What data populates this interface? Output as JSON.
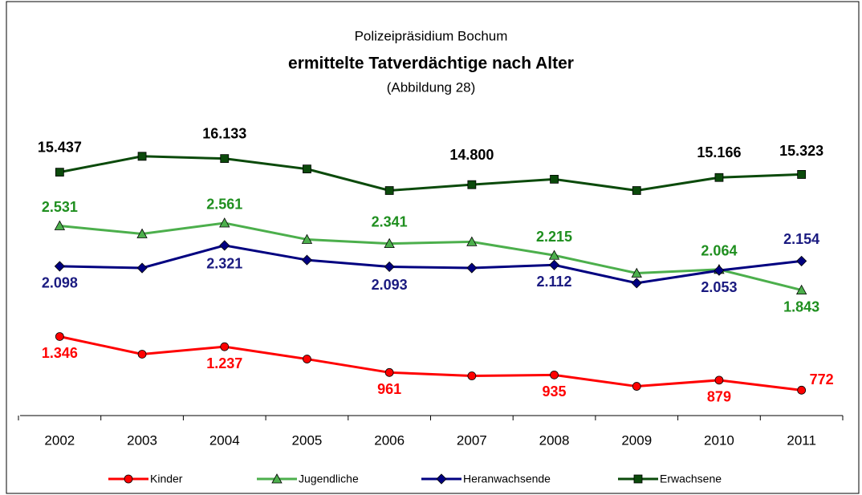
{
  "chart_data": {
    "type": "line",
    "title": "ermittelte Tatverdächtige nach Alter",
    "supertitle": "Polizeipräsidium Bochum",
    "subtitle": "(Abbildung 28)",
    "categories": [
      "2002",
      "2003",
      "2004",
      "2005",
      "2006",
      "2007",
      "2008",
      "2009",
      "2010",
      "2011"
    ],
    "ylim": [
      500,
      3600
    ],
    "y2lim": [
      3000,
      17800
    ],
    "legend": "bottom",
    "series": [
      {
        "name": "Kinder",
        "color": "#ff0000",
        "label_color": "#ff0000",
        "marker": "circle",
        "values": [
          1346,
          1157,
          1237,
          1105,
          961,
          925,
          935,
          813,
          879,
          772
        ],
        "value_labels": [
          "1.346",
          null,
          "1.237",
          null,
          "961",
          null,
          "935",
          null,
          "879",
          "772"
        ]
      },
      {
        "name": "Jugendliche",
        "color": "#4caf4c",
        "label_color": "#1f8f1f",
        "marker": "triangle",
        "values": [
          2531,
          2445,
          2561,
          2385,
          2341,
          2360,
          2215,
          2024,
          2064,
          1843
        ],
        "value_labels": [
          "2.531",
          null,
          "2.561",
          null,
          "2.341",
          null,
          "2.215",
          null,
          "2.064",
          "1.843"
        ]
      },
      {
        "name": "Heranwachsende",
        "color": "#000080",
        "label_color": "#1a1a80",
        "marker": "diamond",
        "values": [
          2098,
          2080,
          2321,
          2165,
          2093,
          2080,
          2112,
          1918,
          2053,
          2154
        ],
        "value_labels": [
          "2.098",
          null,
          "2.321",
          null,
          "2.093",
          null,
          "2.112",
          null,
          "2.053",
          "2.154"
        ]
      },
      {
        "name": "Erwachsene",
        "color": "#0b4a0b",
        "label_color": "#000000",
        "marker": "square",
        "axis": "y2",
        "values": [
          15437,
          16250,
          16133,
          15600,
          14500,
          14800,
          15080,
          14500,
          15166,
          15323
        ],
        "value_labels": [
          "15.437",
          null,
          "16.133",
          null,
          null,
          "14.800",
          null,
          null,
          "15.166",
          "15.323"
        ]
      }
    ]
  }
}
